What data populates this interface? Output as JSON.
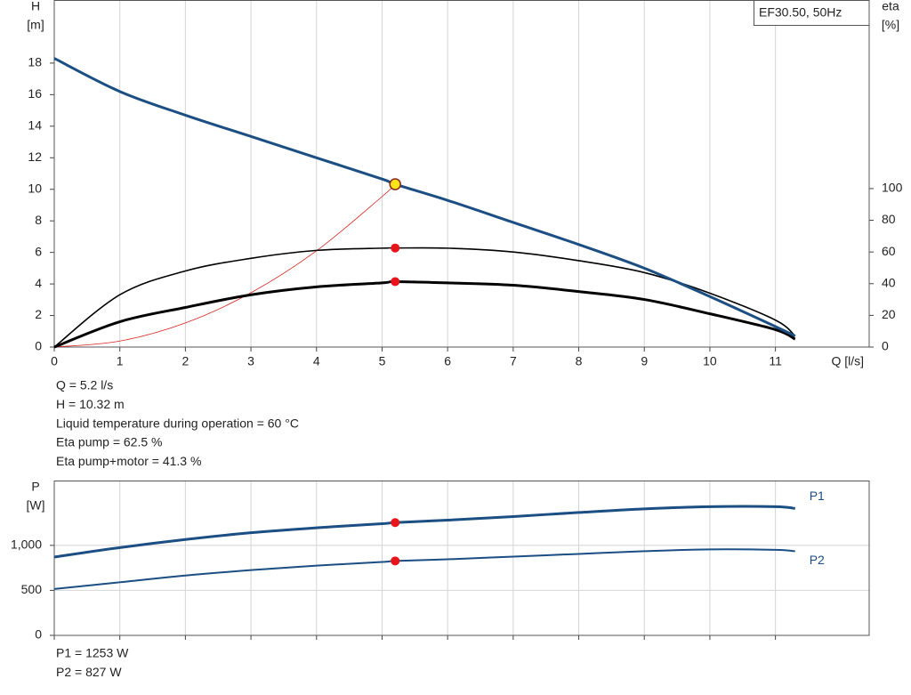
{
  "chart_data": [
    {
      "type": "line",
      "title": "EF30.50, 50Hz",
      "y_label": [
        "H",
        "[m]"
      ],
      "y2_label": [
        "eta",
        "[%]"
      ],
      "x_label": "Q [l/s]",
      "x": [
        0,
        1,
        2,
        3,
        4,
        5,
        5.2,
        6,
        7,
        8,
        9,
        10,
        11,
        11.3
      ],
      "xlim": [
        0,
        12.43
      ],
      "xticks": [
        0,
        1,
        2,
        3,
        4,
        5,
        6,
        7,
        8,
        9,
        10,
        11
      ],
      "show_x_labels": true,
      "ylim": [
        0,
        22
      ],
      "yticks": [
        0,
        2,
        4,
        6,
        8,
        10,
        12,
        14,
        16,
        18
      ],
      "y2lim": [
        0,
        219
      ],
      "y2ticks": [
        0,
        20,
        40,
        60,
        80,
        100
      ],
      "grid": "x",
      "duty_q": 5.2,
      "series": [
        {
          "color": "#d9231d",
          "width": 0.8,
          "values": [
            0,
            0.38,
            1.53,
            3.44,
            6.1,
            9.54,
            10.32,
            null,
            null,
            null,
            null,
            null,
            null,
            null
          ]
        },
        {
          "color": "#000000",
          "width": 1.6,
          "axis": "y2",
          "marker_color": "#e8141b",
          "values": [
            0,
            33,
            48,
            56,
            61,
            62.4,
            62.5,
            62.4,
            60,
            54.5,
            47,
            34,
            17,
            7
          ]
        },
        {
          "color": "#000000",
          "width": 3,
          "axis": "y2",
          "marker_color": "#e8141b",
          "values": [
            0,
            16,
            25,
            33,
            38,
            40.5,
            41.3,
            40.5,
            39,
            35,
            30,
            21,
            11,
            5
          ]
        },
        {
          "color": "#1b4e82",
          "width": 3,
          "marker_color": "#ffe21a",
          "values": [
            18.3,
            16.2,
            14.7,
            13.35,
            12.0,
            10.65,
            10.32,
            9.3,
            7.9,
            6.5,
            5.0,
            3.2,
            1.3,
            0.7
          ]
        }
      ],
      "notes": [
        "Q = 5.2 l/s",
        "H = 10.32 m",
        "Liquid temperature during operation = 60 °C",
        "Eta pump = 62.5 %",
        "Eta pump+motor = 41.3 %"
      ]
    },
    {
      "type": "line",
      "y_label": [
        "P",
        "[W]"
      ],
      "x": [
        0,
        1,
        2,
        3,
        4,
        5,
        5.2,
        6,
        7,
        8,
        9,
        10,
        11,
        11.3
      ],
      "xlim": [
        0,
        12.43
      ],
      "xticks": [
        0,
        1,
        2,
        3,
        4,
        5,
        6,
        7,
        8,
        9,
        10,
        11
      ],
      "show_x_labels": false,
      "ylim": [
        0,
        1720
      ],
      "yticks": [
        0,
        500,
        {
          "value": 1000,
          "label": "1,000"
        }
      ],
      "grid": "both",
      "duty_q": 5.2,
      "series": [
        {
          "name": "P1",
          "color": "#1b4e82",
          "width": 3,
          "label_side": "above",
          "marker_color": "#e8141b",
          "values": [
            870,
            975,
            1065,
            1140,
            1195,
            1240,
            1253,
            1280,
            1320,
            1365,
            1405,
            1430,
            1430,
            1410
          ]
        },
        {
          "name": "P2",
          "color": "#1b4e82",
          "width": 2,
          "label_side": "below",
          "marker_color": "#e8141b",
          "values": [
            515,
            590,
            665,
            725,
            775,
            815,
            827,
            845,
            875,
            905,
            935,
            955,
            950,
            935
          ]
        }
      ],
      "notes": [
        "P1 = 1253 W",
        "P2 = 827 W"
      ]
    }
  ]
}
